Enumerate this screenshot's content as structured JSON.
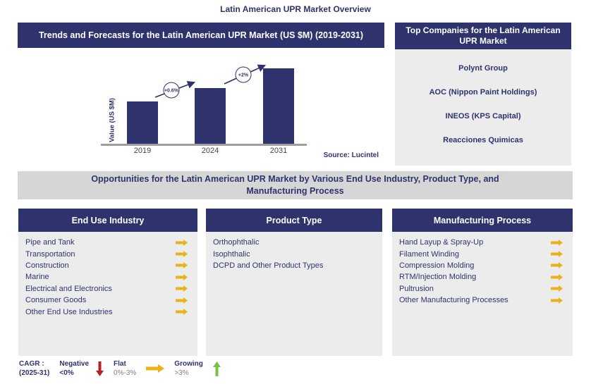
{
  "page_title": "Latin American UPR Market Overview",
  "colors": {
    "navy": "#2e336d",
    "panel_gray": "#ececec",
    "band_gray": "#d6d6d6",
    "gold": "#e9b219",
    "red": "#b42025",
    "green": "#76c043",
    "axis_gray": "#9e9e9e",
    "muted_text": "#808080"
  },
  "trends_panel": {
    "header": "Trends and Forecasts for the Latin American UPR Market (US $M) (2019-2031)",
    "source_label": "Source: Lucintel"
  },
  "chart_data": {
    "type": "bar",
    "title": "Trends and Forecasts for the Latin American UPR Market (US $M) (2019-2031)",
    "categories": [
      "2019",
      "2024",
      "2031"
    ],
    "values": [
      60,
      79,
      107
    ],
    "value_axis_labeled": false,
    "ylabel": "Value (US $M)",
    "xlabel": "",
    "grid": false,
    "bar_color": "#2e336d",
    "growth_labels": [
      "+0.6%",
      "+2%"
    ]
  },
  "top_companies_panel": {
    "header": "Top Companies for the Latin American UPR Market",
    "companies": [
      "Polynt Group",
      "AOC (Nippon  Paint Holdings)",
      "INEOS (KPS Capital)",
      "Reacciones Quimicas"
    ]
  },
  "opportunities_band": {
    "text": "Opportunities for the Latin American UPR Market by Various End Use Industry, Product Type, and Manufacturing Process"
  },
  "columns": [
    {
      "header": "End Use Industry",
      "items": [
        {
          "label": "Pipe and Tank",
          "trend": "flat"
        },
        {
          "label": "Transportation",
          "trend": "flat"
        },
        {
          "label": "Construction",
          "trend": "flat"
        },
        {
          "label": "Marine",
          "trend": "flat"
        },
        {
          "label": "Electrical and Electronics",
          "trend": "flat"
        },
        {
          "label": "Consumer Goods",
          "trend": "flat"
        },
        {
          "label": "Other End Use Industries",
          "trend": "flat"
        }
      ]
    },
    {
      "header": "Product Type",
      "items": [
        {
          "label": "Orthophthalic",
          "trend": null
        },
        {
          "label": "Isophthalic",
          "trend": null
        },
        {
          "label": "DCPD and Other Product Types",
          "trend": null
        }
      ]
    },
    {
      "header": "Manufacturing Process",
      "items": [
        {
          "label": "Hand Layup & Spray-Up",
          "trend": "flat"
        },
        {
          "label": "Filament Winding",
          "trend": "flat"
        },
        {
          "label": "Compression Molding",
          "trend": "flat"
        },
        {
          "label": "RTM/Injection Molding",
          "trend": "flat"
        },
        {
          "label": "Pultrusion",
          "trend": "flat"
        },
        {
          "label": "Other Manufacturing Processes",
          "trend": "flat"
        }
      ]
    }
  ],
  "legend": {
    "title_line1": "CAGR :",
    "title_line2": "(2025-31)",
    "entries": [
      {
        "label": "Negative",
        "range": "<0%",
        "icon": "down-arrow",
        "color": "#b42025"
      },
      {
        "label": "Flat",
        "range": "0%-3%",
        "icon": "right-arrow",
        "color": "#e9b219"
      },
      {
        "label": "Growing",
        "range": ">3%",
        "icon": "up-arrow",
        "color": "#76c043"
      }
    ]
  }
}
